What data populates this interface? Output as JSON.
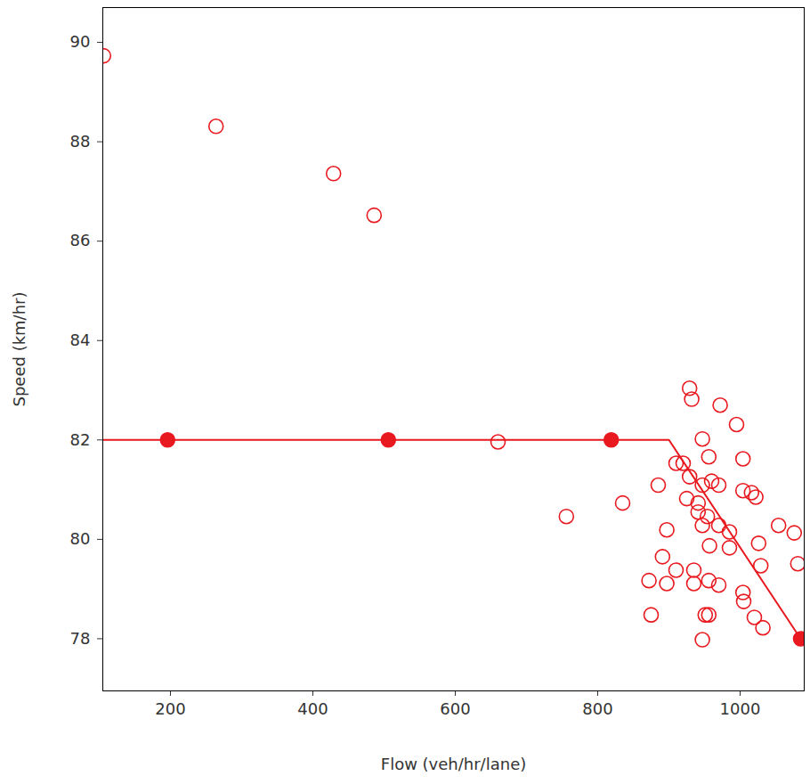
{
  "chart_data": {
    "type": "scatter",
    "x_label": "Flow (veh/hr/lane)",
    "y_label": "Speed (km/hr)",
    "xlim": [
      105,
      1090
    ],
    "xticks": [
      200,
      400,
      600,
      800,
      1000
    ],
    "ylim": [
      76.95,
      90.7
    ],
    "yticks": [
      78,
      80,
      82,
      84,
      86,
      88,
      90
    ],
    "grid": false,
    "series": [
      {
        "type": "scatter",
        "marker": "open_circle",
        "color": "#e8191f",
        "x": [
          106,
          264,
          429,
          486,
          660,
          756,
          835,
          920,
          929,
          932,
          972,
          995,
          1004,
          947,
          956,
          885,
          910,
          929,
          947,
          960,
          970,
          941,
          925,
          941,
          954,
          947,
          970,
          985,
          897,
          1004,
          1016,
          1022,
          1026,
          1054,
          1076,
          1081,
          1029,
          985,
          957,
          891,
          872,
          897,
          910,
          935,
          935,
          956,
          970,
          1004,
          1005,
          1020,
          1032,
          875,
          951,
          956,
          947
        ],
        "values": [
          89.73,
          88.31,
          87.36,
          86.52,
          81.96,
          80.46,
          80.73,
          81.53,
          83.04,
          82.82,
          82.7,
          82.31,
          81.62,
          82.02,
          81.66,
          81.09,
          81.53,
          81.26,
          81.09,
          81.17,
          81.09,
          80.55,
          80.82,
          80.73,
          80.46,
          80.28,
          80.28,
          80.15,
          80.19,
          80.98,
          80.94,
          80.85,
          79.92,
          80.28,
          80.13,
          79.51,
          79.47,
          79.83,
          79.87,
          79.65,
          79.17,
          79.11,
          79.38,
          79.11,
          79.38,
          79.17,
          79.08,
          78.93,
          78.75,
          78.43,
          78.22,
          78.48,
          78.48,
          78.48,
          77.98
        ]
      },
      {
        "type": "line",
        "line_style": "solid",
        "color": "#e8191f",
        "x": [
          105,
          900,
          1085
        ],
        "values": [
          82,
          82,
          78
        ]
      },
      {
        "type": "scatter",
        "marker": "filled_circle",
        "color": "#e8191f",
        "x": [
          196,
          506,
          819,
          1085
        ],
        "values": [
          82,
          82,
          82,
          78
        ]
      }
    ]
  }
}
